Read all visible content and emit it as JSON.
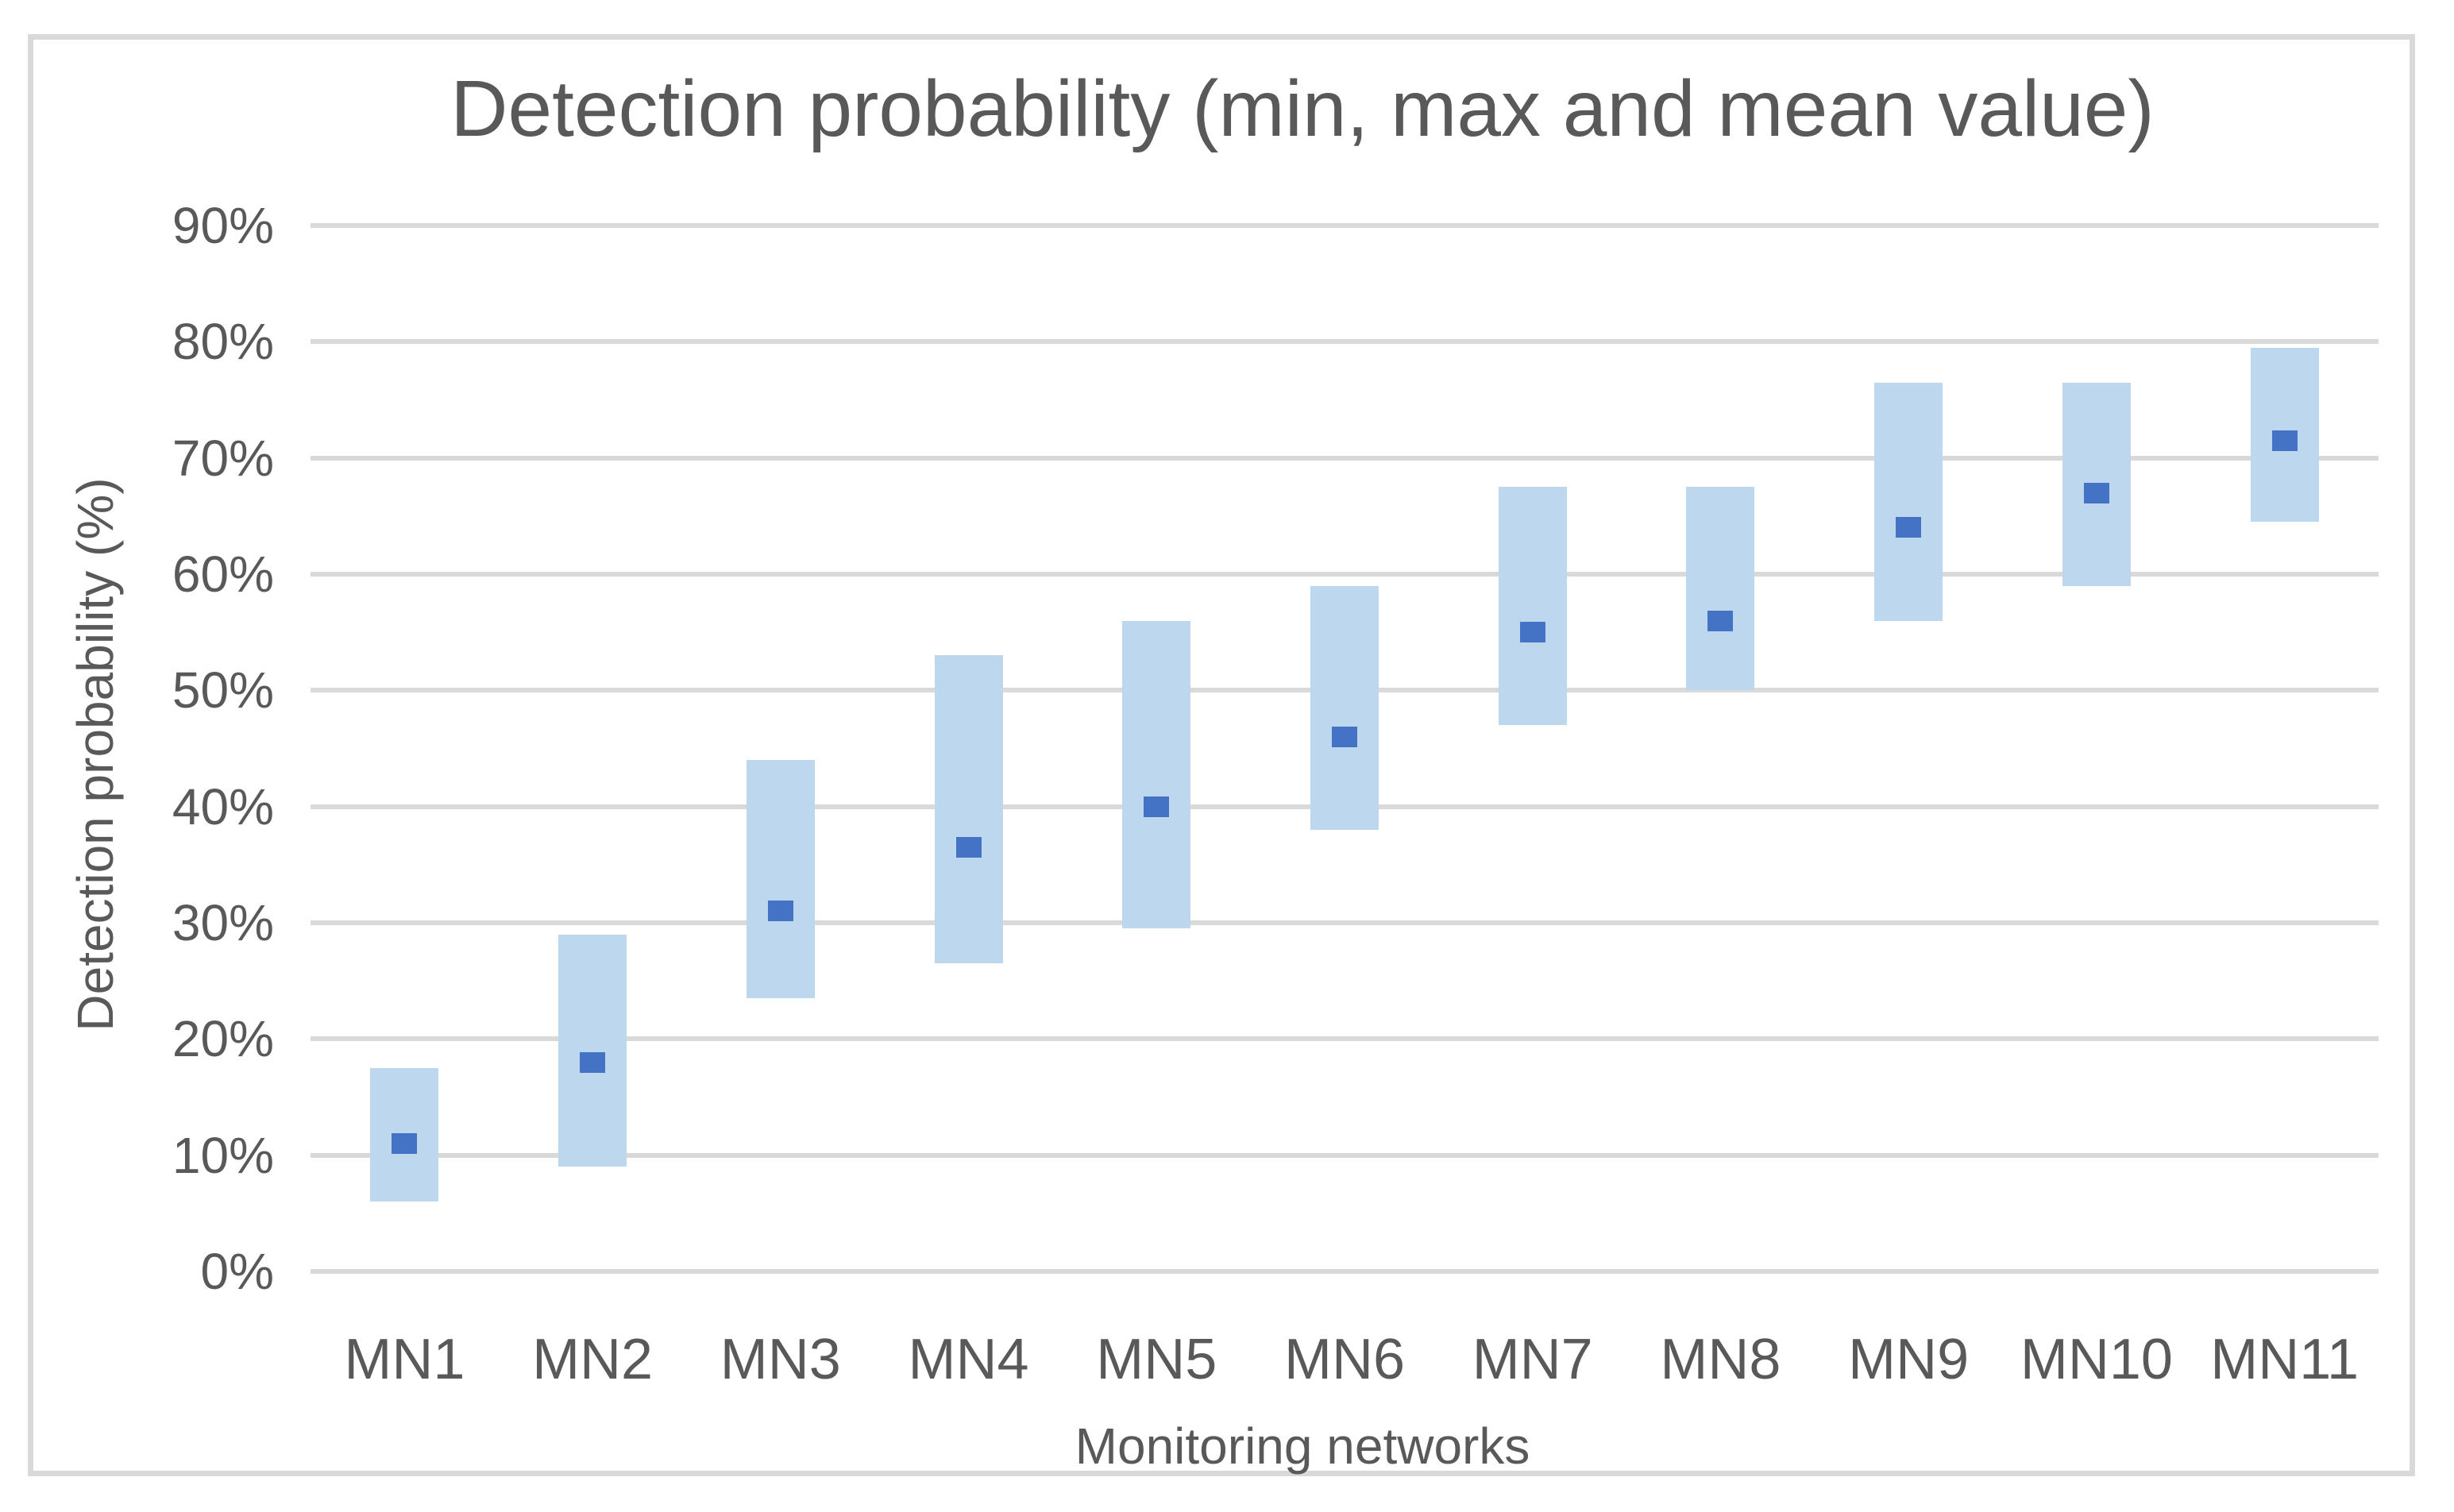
{
  "chart_data": {
    "type": "bar",
    "subtype": "floating-range-bars-with-mean-markers",
    "title": "Detection probability (min, max and mean value)",
    "xlabel": "Monitoring networks",
    "ylabel": "Detection probability (%)",
    "categories": [
      "MN1",
      "MN2",
      "MN3",
      "MN4",
      "MN5",
      "MN6",
      "MN7",
      "MN8",
      "MN9",
      "MN10",
      "MN11"
    ],
    "series": [
      {
        "name": "min",
        "values": [
          6,
          9,
          23.5,
          26.5,
          29.5,
          38,
          47,
          50,
          56,
          59,
          64.5
        ]
      },
      {
        "name": "max",
        "values": [
          17.5,
          29,
          44,
          53,
          56,
          59,
          67.5,
          67.5,
          76.5,
          76.5,
          79.5
        ]
      },
      {
        "name": "mean",
        "values": [
          11,
          18,
          31,
          36.5,
          40,
          46,
          55,
          56,
          64,
          67,
          71.5
        ]
      }
    ],
    "ylim": [
      0,
      90
    ],
    "ytick_step": 10,
    "ytick_labels": [
      "0%",
      "10%",
      "20%",
      "30%",
      "40%",
      "50%",
      "60%",
      "70%",
      "80%",
      "90%"
    ],
    "grid": true,
    "legend": "none"
  },
  "colors": {
    "background": "#FFFFFF",
    "range_bar": "#BDD7EE",
    "mean_marker": "#4472C4",
    "gridline": "#D9D9D9",
    "chart_border": "#D9D9D9",
    "text": "#595959"
  }
}
